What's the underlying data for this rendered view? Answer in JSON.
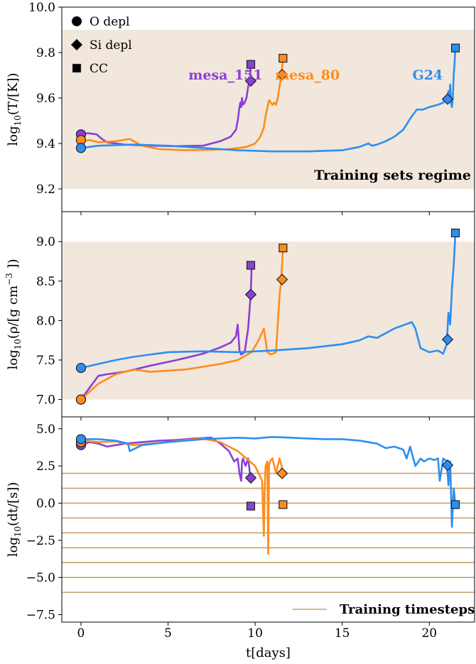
{
  "chart_data": {
    "type": "line",
    "xlabel": "t[days]",
    "x_ticks": [
      0,
      5,
      10,
      15,
      20
    ],
    "xlim": [
      -1.1,
      22.6
    ],
    "colors": {
      "mesa_151": "#8a3fd6",
      "mesa_80": "#ff8c1a",
      "G24": "#2e8ef0",
      "training": "#c8a06e",
      "regime_fill": "#f1e7dc"
    },
    "panels": [
      {
        "id": "temperature",
        "ylabel": "log10(T/[K])",
        "ylim": [
          9.1,
          10.0
        ],
        "y_ticks": [
          9.2,
          9.4,
          9.6,
          9.8,
          10.0
        ],
        "y_tick_labels": [
          "9.2",
          "9.4",
          "9.6",
          "9.8",
          "10.0"
        ],
        "regime": [
          9.2,
          9.9
        ],
        "regime_label": "Training sets regime",
        "series": [
          {
            "name": "mesa_151",
            "x": [
              0,
              0.4,
              0.9,
              1.2,
              1.5,
              2.5,
              4,
              5.5,
              7,
              8,
              8.6,
              8.9,
              9.0,
              9.1,
              9.15,
              9.2,
              9.25,
              9.3,
              9.4,
              9.5,
              9.6,
              9.7,
              9.75
            ],
            "y": [
              9.44,
              9.445,
              9.44,
              9.42,
              9.405,
              9.395,
              9.39,
              9.388,
              9.39,
              9.41,
              9.43,
              9.46,
              9.5,
              9.56,
              9.58,
              9.56,
              9.6,
              9.57,
              9.58,
              9.6,
              9.65,
              9.68,
              9.75
            ],
            "markers": {
              "O": [
                0,
                9.44
              ],
              "Si": [
                9.75,
                9.675
              ],
              "CC": [
                9.75,
                9.748
              ]
            }
          },
          {
            "name": "mesa_80",
            "x": [
              0,
              0.5,
              1,
              2,
              2.8,
              3.5,
              4.5,
              6,
              7.5,
              8.5,
              9.5,
              10,
              10.3,
              10.5,
              10.6,
              10.8,
              11.0,
              11.1,
              11.2,
              11.3,
              11.5,
              11.6
            ],
            "y": [
              9.41,
              9.415,
              9.405,
              9.41,
              9.42,
              9.39,
              9.375,
              9.37,
              9.372,
              9.375,
              9.385,
              9.4,
              9.43,
              9.47,
              9.52,
              9.59,
              9.57,
              9.58,
              9.57,
              9.6,
              9.7,
              9.775
            ],
            "markers": {
              "O": [
                0,
                9.415
              ],
              "Si": [
                11.55,
                9.703
              ],
              "CC": [
                11.6,
                9.775
              ]
            }
          },
          {
            "name": "G24",
            "x": [
              0,
              1,
              3,
              5,
              7,
              9,
              11,
              13,
              15,
              16,
              16.5,
              16.7,
              17,
              17.5,
              18,
              18.5,
              19,
              19.3,
              19.6,
              20,
              20.5,
              20.8,
              21.0,
              21.1,
              21.15,
              21.2,
              21.25,
              21.3,
              21.35,
              21.4,
              21.45,
              21.5
            ],
            "y": [
              9.38,
              9.39,
              9.395,
              9.39,
              9.38,
              9.37,
              9.365,
              9.365,
              9.37,
              9.385,
              9.4,
              9.39,
              9.395,
              9.41,
              9.43,
              9.46,
              9.52,
              9.55,
              9.548,
              9.56,
              9.57,
              9.58,
              9.6,
              9.63,
              9.59,
              9.66,
              9.58,
              9.56,
              9.6,
              9.7,
              9.75,
              9.82
            ],
            "markers": {
              "O": [
                0,
                9.38
              ],
              "Si": [
                21.05,
                9.595
              ],
              "CC": [
                21.5,
                9.82
              ]
            }
          }
        ],
        "legend": [
          {
            "shape": "circle",
            "label": "O depl"
          },
          {
            "shape": "diamond",
            "label": "Si depl"
          },
          {
            "shape": "square",
            "label": "CC"
          }
        ],
        "series_labels": [
          {
            "series": "mesa_151",
            "text": "mesa_151",
            "x": 8.3,
            "y": 9.7
          },
          {
            "series": "mesa_80",
            "text": "mesa_80",
            "x": 13.0,
            "y": 9.7
          },
          {
            "series": "G24",
            "text": "G24",
            "x": 19.9,
            "y": 9.7
          }
        ]
      },
      {
        "id": "density",
        "ylabel": "log10(ρ/[g cm^-3])",
        "ylim": [
          6.78,
          9.38
        ],
        "y_ticks": [
          7.0,
          7.5,
          8.0,
          8.5,
          9.0
        ],
        "y_tick_labels": [
          "7.0",
          "7.5",
          "8.0",
          "8.5",
          "9.0"
        ],
        "regime": [
          7.0,
          9.0
        ],
        "series": [
          {
            "name": "mesa_151",
            "x": [
              0,
              0.5,
              1,
              1.5,
              2.5,
              4,
              5.5,
              7,
              8,
              8.6,
              8.9,
              9.0,
              9.1,
              9.2,
              9.4,
              9.6,
              9.7,
              9.75,
              9.8
            ],
            "y": [
              7.0,
              7.15,
              7.3,
              7.32,
              7.35,
              7.43,
              7.5,
              7.58,
              7.66,
              7.72,
              7.8,
              7.95,
              7.62,
              7.57,
              7.6,
              7.9,
              8.2,
              8.33,
              8.7
            ],
            "markers": {
              "O": [
                0,
                7.0
              ],
              "Si": [
                9.75,
                8.33
              ],
              "CC": [
                9.75,
                8.7
              ]
            }
          },
          {
            "name": "mesa_80",
            "x": [
              0,
              0.5,
              1,
              2,
              3,
              4,
              6,
              8,
              9,
              9.8,
              10.2,
              10.5,
              10.7,
              10.9,
              11.2,
              11.4,
              11.5,
              11.6
            ],
            "y": [
              7.0,
              7.1,
              7.2,
              7.32,
              7.38,
              7.35,
              7.38,
              7.45,
              7.5,
              7.6,
              7.75,
              7.9,
              7.6,
              7.57,
              7.6,
              8.3,
              8.52,
              8.92
            ],
            "markers": {
              "O": [
                0,
                7.0
              ],
              "Si": [
                11.55,
                8.52
              ],
              "CC": [
                11.6,
                8.92
              ]
            }
          },
          {
            "name": "G24",
            "x": [
              0,
              1,
              2,
              3,
              5,
              7,
              9,
              11,
              13,
              15,
              16,
              16.5,
              17,
              18,
              19,
              19.2,
              19.5,
              20,
              20.5,
              20.8,
              21.0,
              21.1,
              21.2,
              21.3,
              21.4,
              21.5
            ],
            "y": [
              7.4,
              7.45,
              7.5,
              7.54,
              7.6,
              7.61,
              7.6,
              7.62,
              7.65,
              7.7,
              7.75,
              7.8,
              7.78,
              7.9,
              7.98,
              7.9,
              7.65,
              7.6,
              7.62,
              7.58,
              7.7,
              8.1,
              7.95,
              8.4,
              8.7,
              9.1
            ],
            "markers": {
              "O": [
                0,
                7.4
              ],
              "Si": [
                21.05,
                7.76
              ],
              "CC": [
                21.5,
                9.11
              ]
            }
          }
        ]
      },
      {
        "id": "timestep",
        "ylabel": "log10(dt/[s])",
        "ylim": [
          -8.0,
          5.8
        ],
        "y_ticks": [
          -7.5,
          -5.0,
          -2.5,
          0.0,
          2.5,
          5.0
        ],
        "y_tick_labels": [
          "−7.5",
          "−5.0",
          "−2.5",
          "0.0",
          "2.5",
          "5.0"
        ],
        "training_timesteps": [
          2,
          1,
          0,
          -1,
          -2,
          -3,
          -4,
          -5,
          -6
        ],
        "training_label": "Training timesteps",
        "series": [
          {
            "name": "mesa_151",
            "x": [
              0,
              0.5,
              1,
              1.5,
              2.5,
              3.5,
              4.5,
              5.5,
              6.5,
              7.5,
              8,
              8.5,
              8.8,
              9.0,
              9.1,
              9.2,
              9.25,
              9.3,
              9.45,
              9.6,
              9.7,
              9.75
            ],
            "y": [
              3.9,
              4.1,
              4.0,
              3.8,
              4.0,
              4.1,
              4.2,
              4.25,
              4.35,
              4.4,
              4.0,
              3.5,
              2.8,
              3.0,
              2.0,
              1.5,
              2.8,
              3.0,
              2.5,
              3.0,
              2.0,
              1.7
            ],
            "markers": {
              "O": [
                0,
                3.9
              ],
              "Si": [
                9.75,
                1.7
              ],
              "CC": [
                9.75,
                -0.2
              ]
            }
          },
          {
            "name": "mesa_80",
            "x": [
              0,
              1,
              2,
              3,
              4,
              5,
              6,
              7,
              8,
              9,
              9.5,
              9.8,
              10.0,
              10.2,
              10.4,
              10.5,
              10.55,
              10.6,
              10.7,
              10.75,
              10.8,
              10.9,
              11.0,
              11.1,
              11.2,
              11.4,
              11.5,
              11.6
            ],
            "y": [
              4.2,
              4.1,
              4.15,
              3.9,
              4.0,
              4.1,
              4.25,
              4.35,
              4.1,
              3.5,
              3.0,
              2.7,
              2.5,
              2.0,
              1.5,
              -2.2,
              1.0,
              2.5,
              2.8,
              -3.4,
              2.6,
              2.9,
              3.0,
              2.5,
              2.0,
              3.0,
              2.6,
              2.0
            ],
            "markers": {
              "O": [
                0,
                4.1
              ],
              "Si": [
                11.55,
                2.0
              ],
              "CC": [
                11.6,
                -0.1
              ]
            }
          },
          {
            "name": "G24",
            "x": [
              0,
              1,
              2,
              2.7,
              2.8,
              3.5,
              5,
              7,
              9,
              10,
              11,
              12,
              13,
              14,
              15,
              16,
              17,
              17.5,
              18,
              18.5,
              18.7,
              18.9,
              19.2,
              19.5,
              19.7,
              20,
              20.3,
              20.5,
              20.6,
              20.8,
              21.0,
              21.1,
              21.2,
              21.3,
              21.4,
              21.5
            ],
            "y": [
              4.3,
              4.3,
              4.2,
              4.0,
              3.5,
              3.9,
              4.1,
              4.3,
              4.4,
              4.35,
              4.45,
              4.4,
              4.35,
              4.3,
              4.3,
              4.2,
              4.0,
              3.7,
              3.8,
              3.6,
              3.0,
              3.8,
              2.5,
              3.0,
              2.8,
              3.0,
              2.9,
              3.0,
              1.5,
              3.0,
              2.8,
              1.2,
              2.8,
              -1.6,
              1.0,
              -0.1
            ],
            "markers": {
              "O": [
                0,
                4.3
              ],
              "Si": [
                21.05,
                2.55
              ],
              "CC": [
                21.5,
                -0.1
              ]
            }
          }
        ]
      }
    ]
  }
}
